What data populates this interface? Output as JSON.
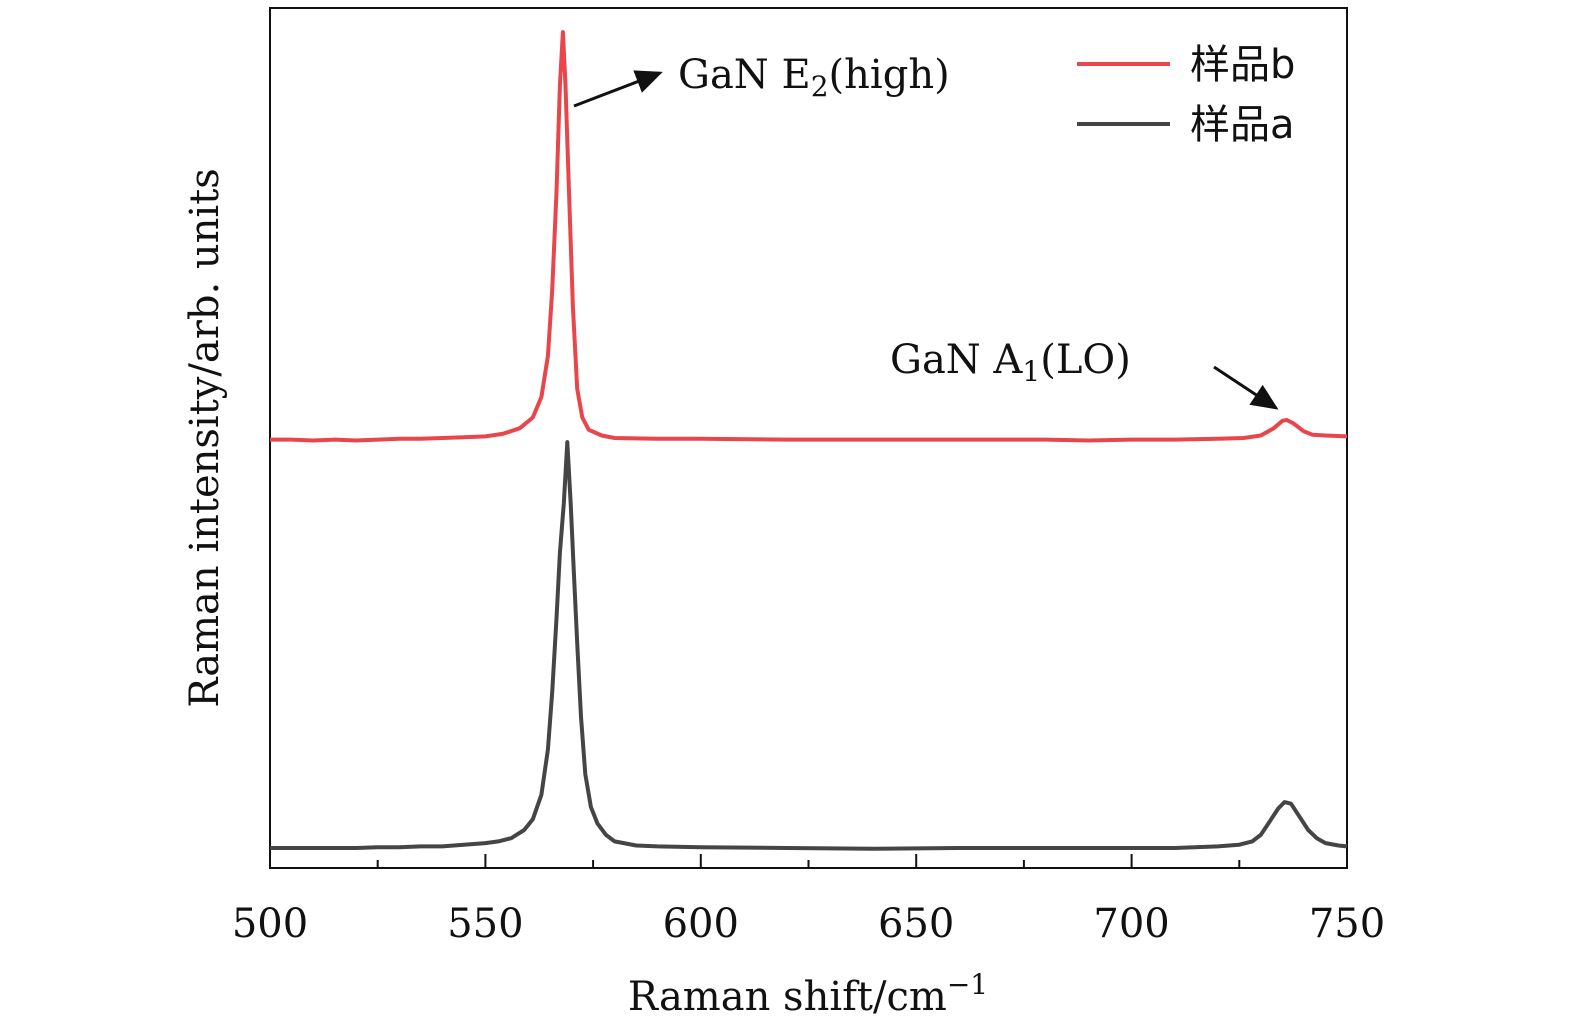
{
  "chart_data": {
    "type": "line",
    "title": "",
    "xlabel": {
      "main": "Raman shift/cm",
      "sup": "−1"
    },
    "ylabel": "Raman intensity/arb. units",
    "xlim": [
      500,
      750
    ],
    "ylim": [
      0,
      1.0
    ],
    "x_ticks": [
      500,
      550,
      600,
      650,
      700,
      750
    ],
    "x_minor_step": 25,
    "grid": false,
    "legend": {
      "position": "top-right"
    },
    "series": [
      {
        "name": "样品b",
        "color": "#e8464a",
        "points": [
          [
            500,
            0.498
          ],
          [
            505,
            0.498
          ],
          [
            510,
            0.497
          ],
          [
            515,
            0.498
          ],
          [
            520,
            0.497
          ],
          [
            525,
            0.498
          ],
          [
            530,
            0.499
          ],
          [
            535,
            0.499
          ],
          [
            540,
            0.5
          ],
          [
            545,
            0.501
          ],
          [
            550,
            0.502
          ],
          [
            554,
            0.505
          ],
          [
            558,
            0.512
          ],
          [
            561,
            0.525
          ],
          [
            563,
            0.55
          ],
          [
            564.5,
            0.6
          ],
          [
            565.5,
            0.68
          ],
          [
            566.5,
            0.8
          ],
          [
            567.3,
            0.93
          ],
          [
            568,
            0.995
          ],
          [
            568.6,
            0.93
          ],
          [
            569.4,
            0.8
          ],
          [
            570.3,
            0.66
          ],
          [
            571.3,
            0.56
          ],
          [
            572.5,
            0.525
          ],
          [
            574,
            0.51
          ],
          [
            577,
            0.503
          ],
          [
            580,
            0.5
          ],
          [
            590,
            0.499
          ],
          [
            600,
            0.499
          ],
          [
            620,
            0.498
          ],
          [
            640,
            0.498
          ],
          [
            660,
            0.498
          ],
          [
            680,
            0.498
          ],
          [
            690,
            0.497
          ],
          [
            700,
            0.498
          ],
          [
            710,
            0.498
          ],
          [
            720,
            0.499
          ],
          [
            726,
            0.5
          ],
          [
            730,
            0.503
          ],
          [
            733,
            0.512
          ],
          [
            735,
            0.521
          ],
          [
            736,
            0.522
          ],
          [
            737.5,
            0.518
          ],
          [
            740,
            0.508
          ],
          [
            742,
            0.504
          ],
          [
            745,
            0.503
          ],
          [
            750,
            0.502
          ]
        ]
      },
      {
        "name": "样品a",
        "color": "#454545",
        "points": [
          [
            500,
            0.0
          ],
          [
            505,
            0.0
          ],
          [
            510,
            0.0
          ],
          [
            515,
            0.0
          ],
          [
            520,
            0.0
          ],
          [
            525,
            0.001
          ],
          [
            530,
            0.001
          ],
          [
            535,
            0.002
          ],
          [
            540,
            0.002
          ],
          [
            545,
            0.004
          ],
          [
            550,
            0.006
          ],
          [
            553,
            0.008
          ],
          [
            556,
            0.012
          ],
          [
            559,
            0.022
          ],
          [
            561,
            0.035
          ],
          [
            563,
            0.065
          ],
          [
            564.5,
            0.12
          ],
          [
            565.5,
            0.19
          ],
          [
            566.5,
            0.28
          ],
          [
            567.3,
            0.36
          ],
          [
            568.2,
            0.42
          ],
          [
            569,
            0.495
          ],
          [
            569.8,
            0.42
          ],
          [
            570.5,
            0.34
          ],
          [
            571.3,
            0.25
          ],
          [
            572.2,
            0.16
          ],
          [
            573.2,
            0.09
          ],
          [
            574.5,
            0.05
          ],
          [
            576,
            0.03
          ],
          [
            578,
            0.016
          ],
          [
            580,
            0.008
          ],
          [
            585,
            0.003
          ],
          [
            590,
            0.002
          ],
          [
            600,
            0.001
          ],
          [
            620,
            0.0
          ],
          [
            640,
            -0.001
          ],
          [
            660,
            0.0
          ],
          [
            680,
            0.0
          ],
          [
            700,
            0.0
          ],
          [
            710,
            0.0
          ],
          [
            720,
            0.002
          ],
          [
            725,
            0.004
          ],
          [
            728,
            0.008
          ],
          [
            730,
            0.016
          ],
          [
            732,
            0.032
          ],
          [
            734,
            0.048
          ],
          [
            735.5,
            0.056
          ],
          [
            737,
            0.054
          ],
          [
            739,
            0.038
          ],
          [
            741,
            0.022
          ],
          [
            743,
            0.012
          ],
          [
            745,
            0.006
          ],
          [
            748,
            0.003
          ],
          [
            750,
            0.002
          ]
        ]
      }
    ],
    "annotations": [
      {
        "id": "e2",
        "label_main": "GaN E",
        "label_sub": "2",
        "label_rest": "(high)",
        "target_x": 568.5,
        "target_y": 0.905
      },
      {
        "id": "a1",
        "label_main": "GaN A",
        "label_sub": "1",
        "label_rest": "(LO)",
        "target_x": 734,
        "target_y": 0.527
      }
    ]
  }
}
